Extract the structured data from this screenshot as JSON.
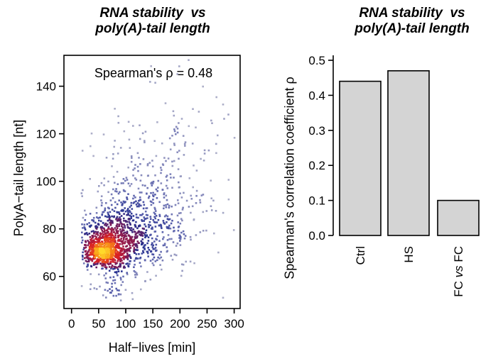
{
  "page": {
    "background": "#ffffff"
  },
  "chart_data": [
    {
      "type": "scatter",
      "variant": "density-colored-smooth-scatter",
      "title_lines": [
        "RNA stability  vs",
        "poly(A)-tail length"
      ],
      "annotation": "Spearman's ρ = 0.48",
      "spearman_rho": 0.48,
      "xlabel": "Half−lives [min]",
      "ylabel": "PolyA−tail length [nt]",
      "xlim": [
        -14,
        311
      ],
      "ylim": [
        46.5,
        153
      ],
      "xticks": [
        0,
        50,
        100,
        150,
        200,
        250,
        300
      ],
      "yticks": [
        60,
        80,
        100,
        120,
        140
      ],
      "grid": false,
      "legend": "none",
      "n_points": 1750,
      "point_size": 2.6,
      "distribution": {
        "seed": 7,
        "x_min": 18,
        "x_max": 308,
        "y_min": 48,
        "y_max": 151,
        "clusters": [
          {
            "n": 430,
            "cx": 58,
            "cy": 70.5,
            "sdx": 15,
            "sdy": 3.2
          },
          {
            "n": 400,
            "cx": 72,
            "cy": 73,
            "sdx": 26,
            "sdy": 5.5
          },
          {
            "n": 430,
            "cx": 100,
            "cy": 78,
            "sdx": 42,
            "sdy": 8.5
          },
          {
            "n": 270,
            "cx": 140,
            "cy": 85,
            "sdx": 58,
            "sdy": 10.5
          },
          {
            "n": 150,
            "cx": 155,
            "cy": 99,
            "sdx": 66,
            "sdy": 15
          },
          {
            "n": 45,
            "cx": 175,
            "cy": 119,
            "sdx": 62,
            "sdy": 13
          },
          {
            "n": 25,
            "cx": 85,
            "cy": 54,
            "sdx": 30,
            "sdy": 2.5
          }
        ]
      },
      "density_color_ramp": [
        "#c6c7d2",
        "#999cc2",
        "#5a61ad",
        "#252f8e",
        "#7d1a55",
        "#b11b3e",
        "#d92125",
        "#f1641a",
        "#f99d17",
        "#ffd92b"
      ]
    },
    {
      "type": "bar",
      "title_lines": [
        "RNA stability  vs",
        "poly(A)-tail length"
      ],
      "ylabel": "Spearman's correlation coefficient ρ",
      "categories": [
        "Ctrl",
        "HS",
        "FC vs FC"
      ],
      "values": [
        0.44,
        0.47,
        0.1
      ],
      "ylim": [
        0,
        0.5
      ],
      "ytick_labels": [
        "0.0",
        "0.1",
        "0.2",
        "0.3",
        "0.4",
        "0.5"
      ],
      "grid": false,
      "legend": "none",
      "bar_fill": "#d4d4d4",
      "bar_stroke": "#000000",
      "italic_word": "vs"
    }
  ]
}
